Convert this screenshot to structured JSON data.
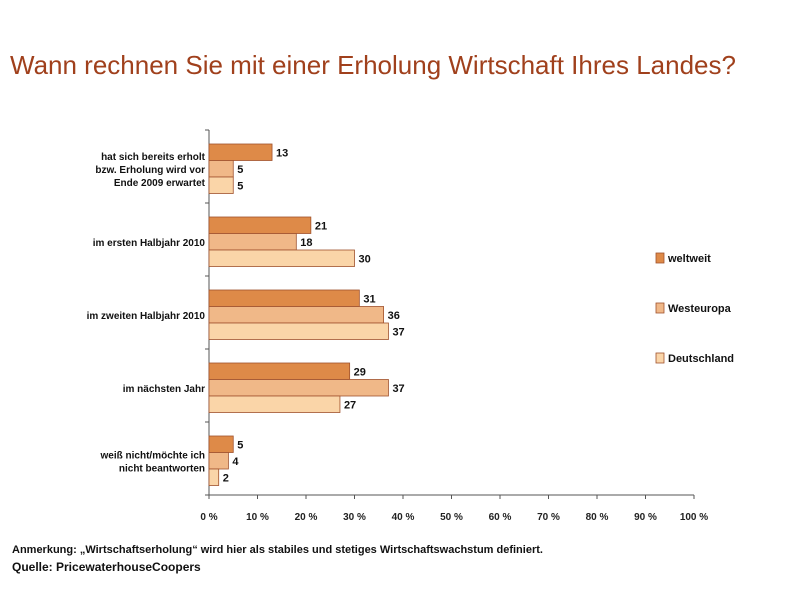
{
  "title": "Wann rechnen Sie mit einer Erholung Wirtschaft Ihres Landes?",
  "note": "Anmerkung: „Wirtschaftserholung“ wird hier als stabiles und stetiges Wirtschaftswachstum definiert.",
  "source": "Quelle: PricewaterhouseCoopers",
  "colors": {
    "weltweit": "#de8a48",
    "Westeuropa": "#f0b888",
    "Deutschland": "#fad5a8",
    "bar_border": "#a0522d",
    "axis": "#555555"
  },
  "chart_data": {
    "type": "bar",
    "orientation": "horizontal",
    "title": "Wann rechnen Sie mit einer Erholung Wirtschaft Ihres Landes?",
    "categories": [
      [
        "hat sich bereits erholt",
        "bzw. Erholung wird vor",
        "Ende 2009 erwartet"
      ],
      [
        "im ersten Halbjahr 2010"
      ],
      [
        "im zweiten Halbjahr 2010"
      ],
      [
        "im nächsten Jahr"
      ],
      [
        "weiß nicht/möchte ich",
        "nicht beantworten"
      ]
    ],
    "series": [
      {
        "name": "weltweit",
        "values": [
          13,
          21,
          31,
          29,
          5
        ]
      },
      {
        "name": "Westeuropa",
        "values": [
          5,
          18,
          36,
          37,
          4
        ]
      },
      {
        "name": "Deutschland",
        "values": [
          5,
          30,
          37,
          27,
          2
        ]
      }
    ],
    "xticks": [
      "0 %",
      "10 %",
      "20 %",
      "30 %",
      "40 %",
      "50 %",
      "60 %",
      "70 %",
      "80 %",
      "90 %",
      "100 %"
    ],
    "xlim": [
      0,
      100
    ],
    "xlabel": "",
    "ylabel": "",
    "legend": "right",
    "grid": false
  }
}
